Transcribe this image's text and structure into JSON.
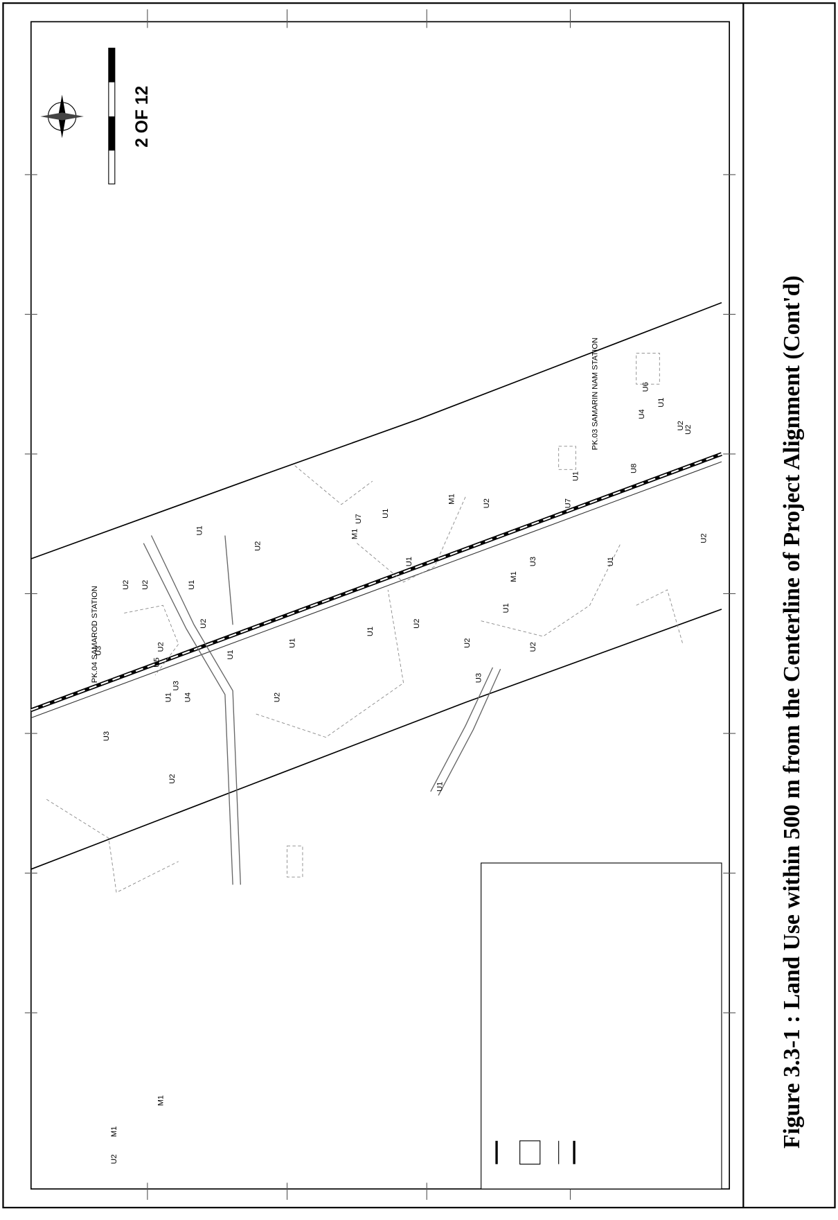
{
  "caption": "Figure 3.3-1 : Land Use within 500 m from the Centerline of Project Alignment (Cont'd)",
  "map": {
    "sheet": "2 OF 12",
    "stations": [
      "PK.04 SAMAROD STATION",
      "PK.03 SAMARIN NAM STATION"
    ],
    "land_use_labels": [
      "U2",
      "U3",
      "M1",
      "M1",
      "U2",
      "U3",
      "U1",
      "U4",
      "U2",
      "U3",
      "U5",
      "U2",
      "U2",
      "U1",
      "U1",
      "U2",
      "U1",
      "U2",
      "U1",
      "U2",
      "U1",
      "M1",
      "U1",
      "U7",
      "U1",
      "U2",
      "M1",
      "U1",
      "U3",
      "U2",
      "U2",
      "U3",
      "U1",
      "M1",
      "U2",
      "U7",
      "U1",
      "U8",
      "U2",
      "U1",
      "U2",
      "U4",
      "U6",
      "U1",
      "U2"
    ]
  }
}
